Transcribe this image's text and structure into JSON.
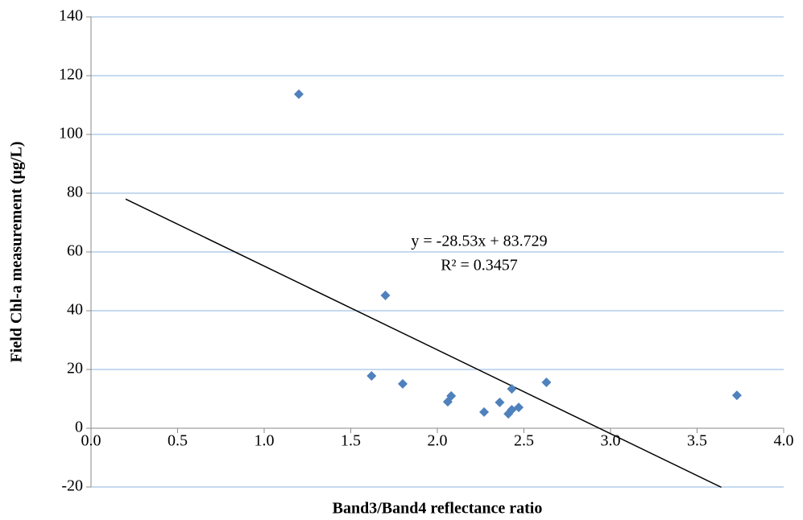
{
  "chart_data": {
    "type": "scatter",
    "x_label": "Band3/Band4 reflectance ratio",
    "y_label": "Field Chl-a measurement (μg/L)",
    "annotations": [
      "y = -28.53x + 83.729",
      "R² = 0.3457"
    ],
    "series": [
      {
        "color": "#4f81bd",
        "x": [
          1.2,
          1.7,
          1.62,
          1.8,
          2.06,
          2.08,
          2.27,
          2.36,
          2.41,
          2.43,
          2.43,
          2.47,
          2.63,
          3.73
        ],
        "values": [
          113.7,
          45.2,
          17.8,
          15.1,
          9.0,
          11.0,
          5.5,
          8.8,
          4.9,
          6.3,
          13.4,
          7.1,
          15.6,
          11.2
        ]
      }
    ],
    "trendline": {
      "color": "#000000",
      "x": [
        0.2,
        3.64
      ],
      "values": [
        78.0,
        -20.1
      ]
    },
    "xlim": [
      0,
      4
    ],
    "xticks": [
      {
        "value": 0,
        "label": "0.0"
      },
      {
        "value": 0.5,
        "label": "0.5"
      },
      {
        "value": 1,
        "label": "1.0"
      },
      {
        "value": 1.5,
        "label": "1.5"
      },
      {
        "value": 2,
        "label": "2.0"
      },
      {
        "value": 2.5,
        "label": "2.5"
      },
      {
        "value": 3,
        "label": "3.0"
      },
      {
        "value": 3.5,
        "label": "3.5"
      },
      {
        "value": 4,
        "label": "4.0"
      }
    ],
    "ylim": [
      -20,
      140
    ],
    "yticks": [
      -20,
      0,
      20,
      40,
      60,
      80,
      100,
      120,
      140
    ],
    "grid": true,
    "grid_color": "#8db3e2"
  }
}
